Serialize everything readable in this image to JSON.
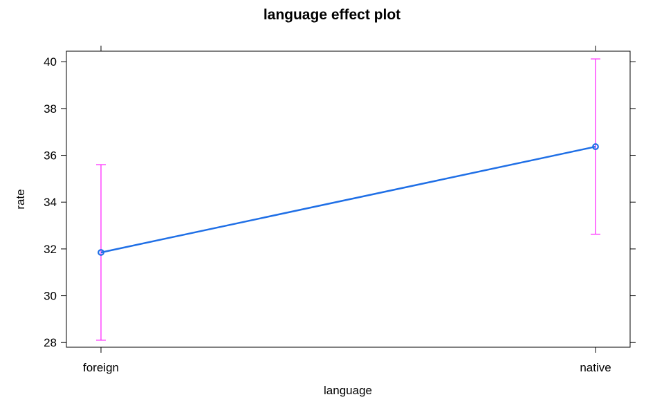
{
  "chart_data": {
    "type": "line",
    "title": "language effect plot",
    "xlabel": "language",
    "ylabel": "rate",
    "categories": [
      "foreign",
      "native"
    ],
    "ylim": [
      27.8,
      40.45
    ],
    "yticks": [
      28,
      30,
      32,
      34,
      36,
      38,
      40
    ],
    "ytick_labels": [
      "28",
      "30",
      "32",
      "34",
      "36",
      "38",
      "40"
    ],
    "series": [
      {
        "values": [
          31.85,
          36.37
        ],
        "lower": [
          28.1,
          32.63
        ],
        "upper": [
          35.6,
          40.12
        ]
      }
    ],
    "grid": false,
    "colors": {
      "line": "#1f6fe6",
      "errorbar": "#ff2cff",
      "axis": "#000000"
    }
  }
}
